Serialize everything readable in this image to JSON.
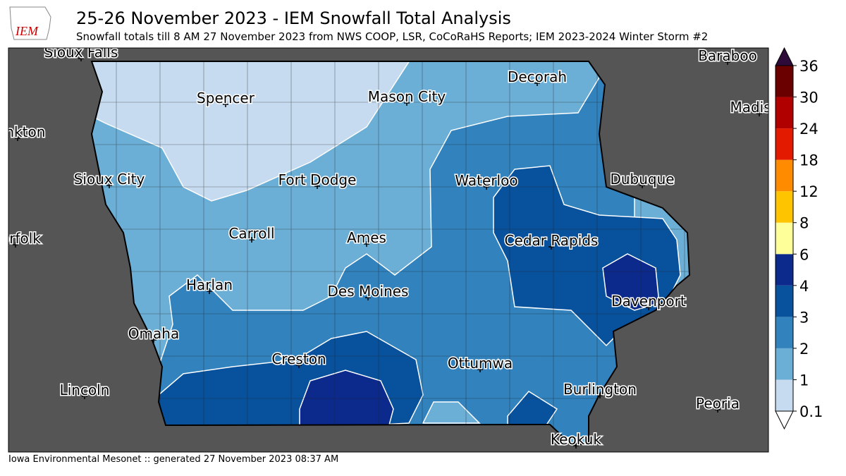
{
  "header": {
    "title": "25-26 November 2023 - IEM Snowfall Total Analysis",
    "subtitle": "Snowfall totals till 8 AM 27 November 2023 from NWS COOP, LSR, CoCoRaHS Reports; IEM 2023-2024 Winter Storm #2"
  },
  "logo": "IEM",
  "legend": {
    "ticks": [
      0.1,
      1,
      2,
      3,
      4,
      6,
      8,
      12,
      18,
      24,
      30,
      36
    ],
    "colors": [
      "#c6dbef",
      "#6baed6",
      "#3182bd",
      "#08519c",
      "#0c2a8c",
      "#ffff99",
      "#ffc400",
      "#ff8c00",
      "#e31a00",
      "#b00000",
      "#6b0000"
    ],
    "over_color": "#2d0a3a",
    "under_color": "#ffffff"
  },
  "cities": [
    "Sioux Falls",
    "Baraboo",
    "Decorah",
    "Spencer",
    "Mason City",
    "Madison",
    "Yankton",
    "Sioux City",
    "Fort Dodge",
    "Waterloo",
    "Dubuque",
    "Norfolk",
    "Carroll",
    "Ames",
    "Cedar Rapids",
    "Harlan",
    "Des Moines",
    "Davenport",
    "Omaha",
    "Creston",
    "Ottumwa",
    "Burlington",
    "Lincoln",
    "Peoria",
    "Keokuk"
  ],
  "footer": "Iowa Environmental Mesonet :: generated 27 November 2023 08:37 AM"
}
